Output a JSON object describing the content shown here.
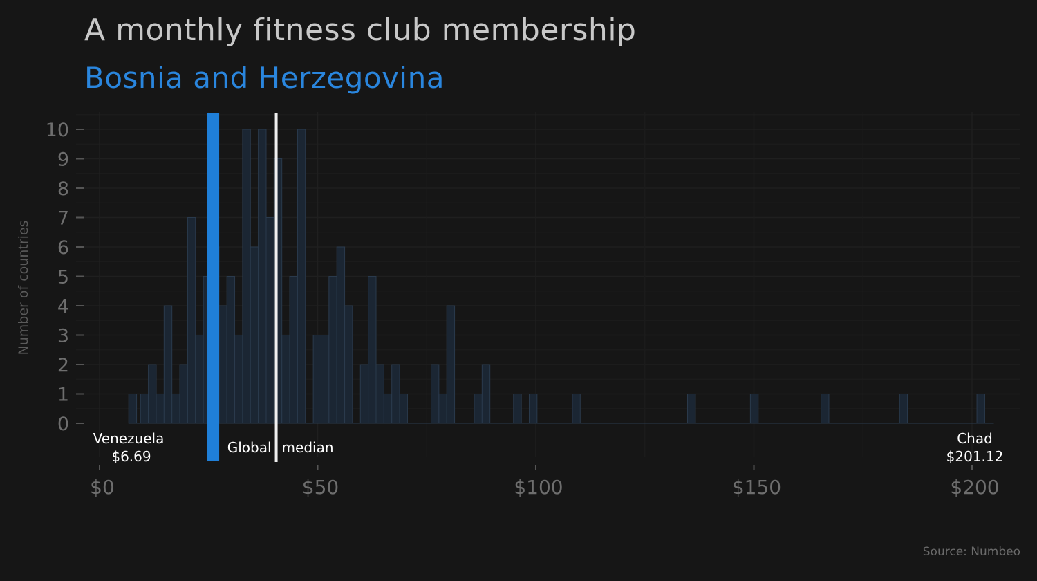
{
  "title": "A monthly fitness club membership",
  "subtitle": "Bosnia and Herzegovina",
  "source": "Source: Numbeo",
  "colors": {
    "background": "#161616",
    "highlight": "#1f7fd8",
    "median": "#f0f0f0",
    "bars_fill": "#1b2633",
    "bars_stroke": "#2a3a4c"
  },
  "chart_data": {
    "type": "bar",
    "title": "A monthly fitness club membership",
    "subtitle": "Bosnia and Herzegovina",
    "xlabel": "",
    "ylabel": "Number of countries",
    "xlim": [
      0,
      210
    ],
    "ylim": [
      0,
      10.5
    ],
    "bin_width": 1.8,
    "x_ticks": [
      0,
      50,
      100,
      150,
      200
    ],
    "x_tick_labels": [
      "$0",
      "$50",
      "$100",
      "$150",
      "$200"
    ],
    "y_ticks": [
      0,
      1,
      2,
      3,
      4,
      5,
      6,
      7,
      8,
      9,
      10
    ],
    "y_tick_labels": [
      "0",
      "1",
      "2",
      "3",
      "4",
      "5",
      "6",
      "7",
      "8",
      "9",
      "10"
    ],
    "grid": true,
    "bins_start": [
      6.69,
      9.39,
      11.19,
      12.99,
      14.79,
      16.59,
      18.39,
      20.19,
      21.99,
      23.79,
      25.59,
      27.39,
      29.19,
      30.99,
      32.79,
      34.59,
      36.39,
      38.19,
      39.99,
      41.79,
      43.59,
      45.39,
      48.99,
      50.79,
      52.59,
      54.39,
      56.19,
      59.79,
      61.59,
      63.39,
      65.19,
      66.99,
      68.79,
      75.99,
      77.79,
      79.59,
      85.89,
      87.69,
      94.89,
      98.49,
      108.39,
      134.79,
      149.19,
      165.39,
      183.39,
      201.12
    ],
    "counts": [
      1,
      1,
      2,
      1,
      4,
      1,
      2,
      7,
      3,
      5,
      6,
      4,
      5,
      3,
      10,
      6,
      10,
      7,
      9,
      3,
      5,
      10,
      3,
      3,
      5,
      6,
      4,
      2,
      5,
      2,
      1,
      2,
      1,
      2,
      1,
      4,
      1,
      2,
      1,
      1,
      1,
      1,
      1,
      1,
      1,
      1
    ],
    "highlight": {
      "label": "Bosnia and Herzegovina",
      "value": 26
    },
    "median": {
      "label": "Global median",
      "value": 40.5
    },
    "annotations": [
      {
        "name": "min",
        "label": "Venezuela",
        "value_label": "$6.69",
        "x": 6.69
      },
      {
        "name": "max",
        "label": "Chad",
        "value_label": "$201.12",
        "x": 201.12
      }
    ]
  }
}
